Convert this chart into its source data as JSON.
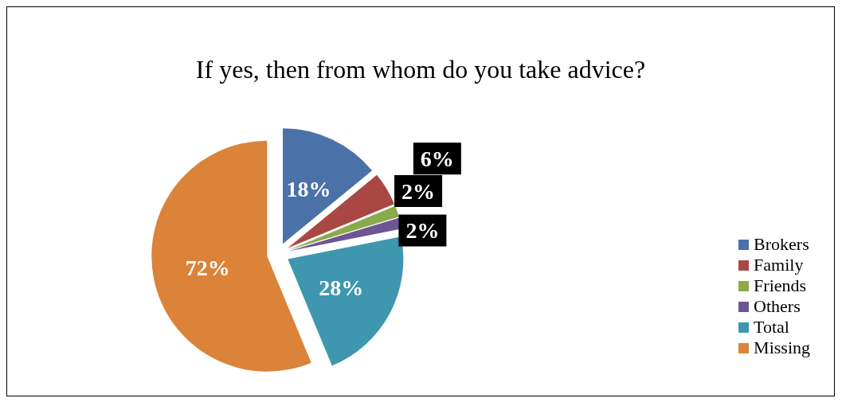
{
  "chart_data": {
    "type": "pie",
    "title": "If yes, then from whom do you take advice?",
    "categories": [
      "Brokers",
      "Family",
      "Friends",
      "Others",
      "Total",
      "Missing"
    ],
    "values": [
      18,
      6,
      2,
      2,
      28,
      72
    ],
    "value_labels": [
      "18%",
      "6%",
      "2%",
      "2%",
      "28%",
      "72%"
    ],
    "colors": [
      "#4a72a8",
      "#a94843",
      "#8aaa4b",
      "#6e5593",
      "#3e97ae",
      "#da8339"
    ],
    "legend": "right"
  }
}
